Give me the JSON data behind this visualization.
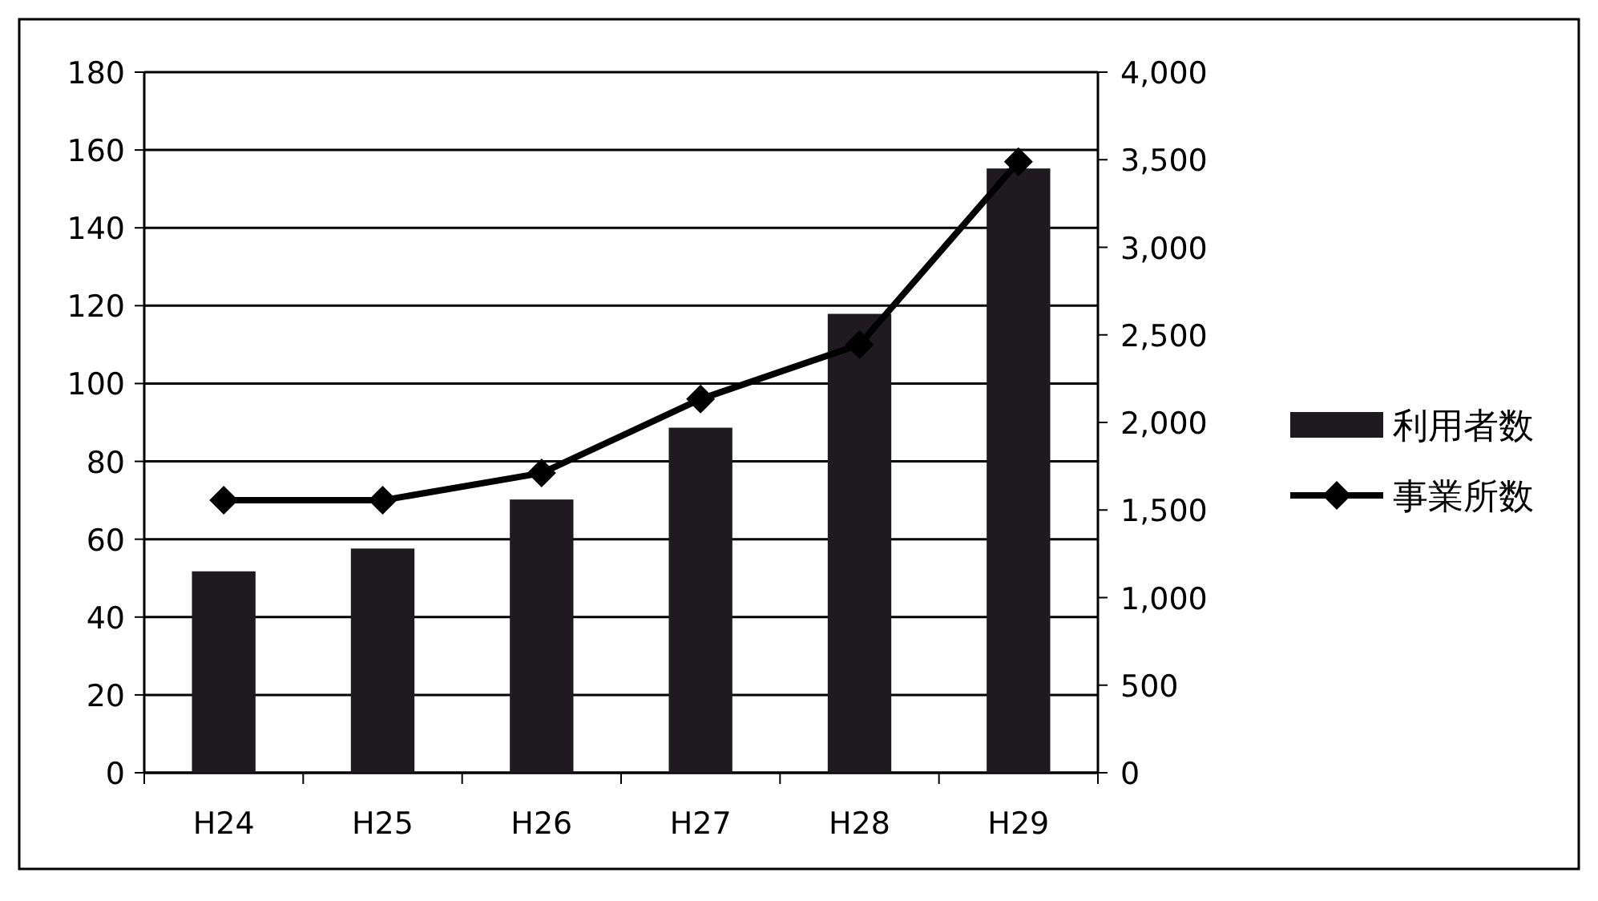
{
  "chart_data": {
    "type": "bar",
    "categories": [
      "H24",
      "H25",
      "H26",
      "H27",
      "H28",
      "H29"
    ],
    "series": [
      {
        "name": "利用者数",
        "axis": "y2",
        "color": "#1e1a20",
        "values": [
          1150,
          1280,
          1560,
          1970,
          2620,
          3450
        ]
      },
      {
        "name": "事業所数",
        "type": "line",
        "axis": "y",
        "color": "#000000",
        "marker": "diamond",
        "values": [
          70,
          70,
          77,
          96,
          110,
          157
        ]
      }
    ],
    "ylim": [
      0,
      180
    ],
    "yticks": [
      0,
      20,
      40,
      60,
      80,
      100,
      120,
      140,
      160,
      180
    ],
    "y2lim": [
      0,
      4000
    ],
    "y2ticks": [
      {
        "value": 0,
        "label": "0"
      },
      {
        "value": 500,
        "label": "500"
      },
      {
        "value": 1000,
        "label": "1,000"
      },
      {
        "value": 1500,
        "label": "1,500"
      },
      {
        "value": 2000,
        "label": "2,000"
      },
      {
        "value": 2500,
        "label": "2,500"
      },
      {
        "value": 3000,
        "label": "3,000"
      },
      {
        "value": 3500,
        "label": "3,500"
      },
      {
        "value": 4000,
        "label": "4,000"
      }
    ],
    "grid": "y",
    "legend": "right"
  }
}
